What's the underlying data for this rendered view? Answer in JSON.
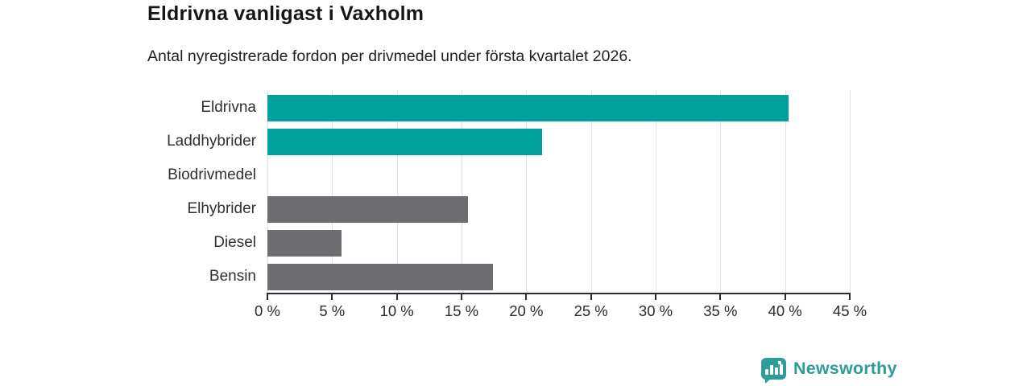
{
  "header": {
    "title": "Eldrivna vanligast i Vaxholm",
    "subtitle": "Antal nyregistrerade fordon per drivmedel under första kvartalet 2026."
  },
  "chart_data": {
    "type": "bar",
    "orientation": "horizontal",
    "title": "Eldrivna vanligast i Vaxholm",
    "subtitle": "Antal nyregistrerade fordon per drivmedel under första kvartalet 2026.",
    "categories": [
      "Eldrivna",
      "Laddhybrider",
      "Biodrivmedel",
      "Elhybrider",
      "Diesel",
      "Bensin"
    ],
    "values": [
      40.3,
      21.2,
      0,
      15.5,
      5.7,
      17.4
    ],
    "unit": "%",
    "xlabel": "",
    "ylabel": "",
    "xlim": [
      0,
      45
    ],
    "x_tick_values": [
      0,
      5,
      10,
      15,
      20,
      25,
      30,
      35,
      40,
      45
    ],
    "x_tick_labels": [
      "0 %",
      "5 %",
      "10 %",
      "15 %",
      "20 %",
      "25 %",
      "30 %",
      "35 %",
      "40 %",
      "45 %"
    ],
    "grid": true,
    "legend": "none",
    "bar_colors": [
      "#00a19a",
      "#00a19a",
      "#6c6c71",
      "#6c6c71",
      "#6c6c71",
      "#6c6c71"
    ],
    "highlight_color": "#00a19a",
    "default_color": "#6c6c71",
    "gridline_color": "#e1e1e1",
    "axis_color": "#2d2d2d"
  },
  "branding": {
    "logo_text": "Newsworthy",
    "logo_color": "#2e9d97",
    "logo_icon": "newsworthy-speech-bubble-bar-chart-icon"
  }
}
